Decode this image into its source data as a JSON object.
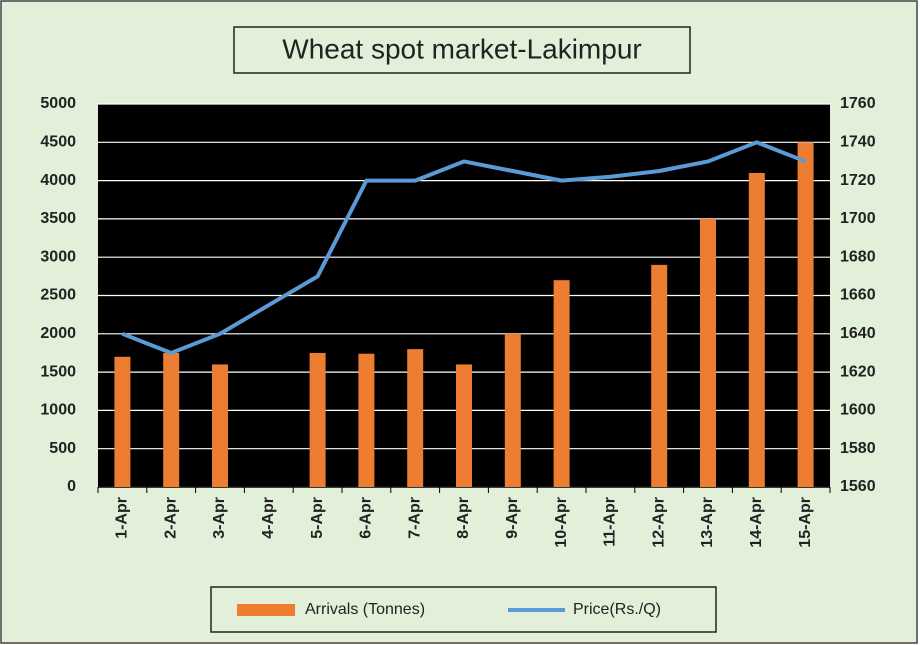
{
  "chart_data": {
    "type": "bar",
    "title": "Wheat spot market-Lakimpur",
    "categories": [
      "1-Apr",
      "2-Apr",
      "3-Apr",
      "4-Apr",
      "5-Apr",
      "6-Apr",
      "7-Apr",
      "8-Apr",
      "9-Apr",
      "10-Apr",
      "11-Apr",
      "12-Apr",
      "13-Apr",
      "14-Apr",
      "15-Apr"
    ],
    "series": [
      {
        "name": "Arrivals (Tonnes)",
        "type": "bar",
        "color": "#ed7d31",
        "values": [
          1700,
          1750,
          1600,
          null,
          1750,
          1740,
          1800,
          1600,
          2000,
          2700,
          null,
          2900,
          3500,
          4100,
          4500
        ]
      },
      {
        "name": "Price(Rs./Q)",
        "type": "line",
        "axis": "y2",
        "color": "#5b9bd5",
        "values": [
          1640,
          1630,
          1640,
          1655,
          1670,
          1720,
          1720,
          1730,
          1725,
          1720,
          1722,
          1725,
          1730,
          1740,
          1730
        ]
      }
    ],
    "ylim": [
      0,
      5000
    ],
    "yticks": [
      0,
      500,
      1000,
      1500,
      2000,
      2500,
      3000,
      3500,
      4000,
      4500,
      5000
    ],
    "y2lim": [
      1560,
      1760
    ],
    "y2ticks": [
      1560,
      1580,
      1600,
      1620,
      1640,
      1660,
      1680,
      1700,
      1720,
      1740,
      1760
    ],
    "grid": true,
    "legend": "bottom"
  }
}
